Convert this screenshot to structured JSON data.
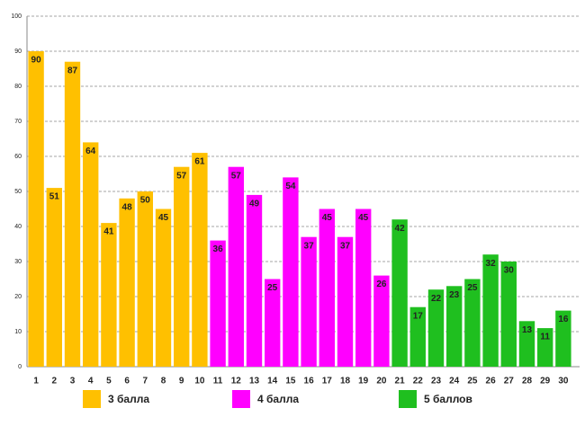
{
  "chart_data": {
    "type": "bar",
    "categories": [
      "1",
      "2",
      "3",
      "4",
      "5",
      "6",
      "7",
      "8",
      "9",
      "10",
      "11",
      "12",
      "13",
      "14",
      "15",
      "16",
      "17",
      "18",
      "19",
      "20",
      "21",
      "22",
      "23",
      "24",
      "25",
      "26",
      "27",
      "28",
      "29",
      "30"
    ],
    "series": [
      {
        "name": "3 балла",
        "color": "#ffc000",
        "values": [
          90,
          51,
          87,
          64,
          41,
          48,
          50,
          45,
          57,
          61,
          null,
          null,
          null,
          null,
          null,
          null,
          null,
          null,
          null,
          null,
          null,
          null,
          null,
          null,
          null,
          null,
          null,
          null,
          null,
          null
        ]
      },
      {
        "name": "4 балла",
        "color": "#ff00ff",
        "values": [
          null,
          null,
          null,
          null,
          null,
          null,
          null,
          null,
          null,
          null,
          36,
          57,
          49,
          25,
          54,
          37,
          45,
          37,
          45,
          26,
          null,
          null,
          null,
          null,
          null,
          null,
          null,
          null,
          null,
          null
        ]
      },
      {
        "name": "5 баллов",
        "color": "#1fbf1f",
        "values": [
          null,
          null,
          null,
          null,
          null,
          null,
          null,
          null,
          null,
          null,
          null,
          null,
          null,
          null,
          null,
          null,
          null,
          null,
          null,
          null,
          42,
          17,
          22,
          23,
          25,
          32,
          30,
          13,
          11,
          16
        ]
      }
    ],
    "ylim": [
      0,
      100
    ],
    "yticks": [
      0,
      10,
      20,
      30,
      40,
      50,
      60,
      70,
      80,
      90,
      100
    ],
    "grid": true,
    "legend": "bottom"
  }
}
